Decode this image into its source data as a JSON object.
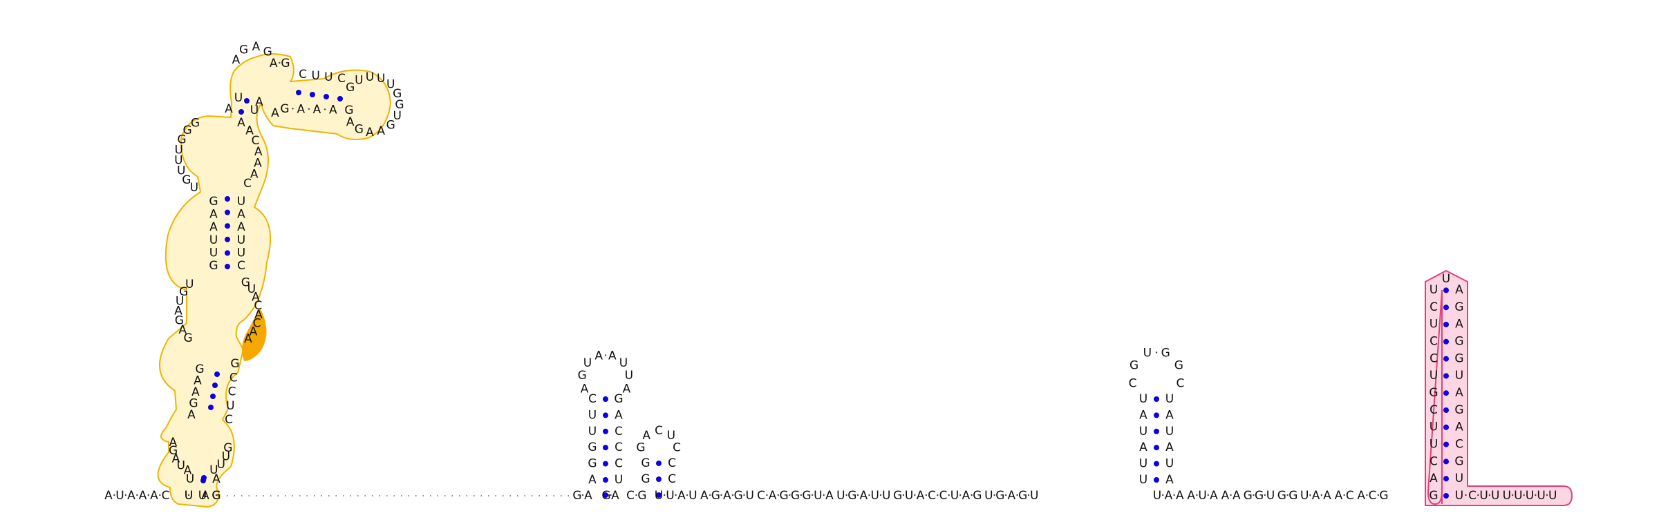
{
  "diagram": {
    "type": "rna-secondary-structure",
    "colors": {
      "nucleotide": "#111111",
      "pair_dot": "#0a00e0",
      "backbone_tick": "#444444",
      "domain1_outline": "#f0b400",
      "domain1_fill": "#fff4cc",
      "domain1_highlight": "#f5a800",
      "domain2_outline": "#e0407a",
      "domain2_fill": "#fcd6e2"
    },
    "base_sequence": "AUAAACUUAG",
    "left_gap_length": 54,
    "left_sequence": "GAGACGUUAUAGAGUCAGGGUAUGAUUGUACCUAGUGAGU",
    "middle_sequence": "UAAAUAAAGGUGGUAAACACG",
    "trailing_sequence": "CUUUUUUU",
    "hairpins": [
      {
        "name": "hairpin-1",
        "left_stem": "AGGUUC",
        "loop": "AGUAAUUA",
        "right_stem": "UCCCAG"
      },
      {
        "name": "hairpin-2",
        "left_stem": "GG",
        "loop": "GACUC",
        "right_stem": "CC"
      },
      {
        "name": "hairpin-3",
        "left_stem": "UUAUAU",
        "loop": "CGUGGC",
        "right_stem": "AUAUAU"
      },
      {
        "name": "terminator-hairpin",
        "left_stem": "GACUUCGUCCUCU",
        "loop": "U",
        "right_stem": "AGAGGUAGACGUU"
      }
    ],
    "domain1": {
      "outer_left_stem": "UU",
      "outer_right_stem": "AG",
      "lower_loop_left": "AUAGA",
      "lower_loop_right": "GUUU",
      "middle_stem_left": "AGAAG",
      "middle_stem_right": "CUCCG",
      "middle_loop_left": "GAGAUGU",
      "middle_loop_right": "GUACACAA",
      "long_stem_left": "GUUAAG",
      "long_stem_right": "UAAUUC",
      "upper_loop_left": "UGUUUGGG",
      "upper_loop_right": "AACAAAC",
      "branch_stem_left": "AU",
      "branch_stem_right": "UA",
      "branch_apex": "AGAGA",
      "branch_top": "G",
      "arm_top": "CUUC",
      "arm_bottom": "GAAAG",
      "arm_loop": "GUUUUGGUGAAGA",
      "junction": "A"
    }
  }
}
